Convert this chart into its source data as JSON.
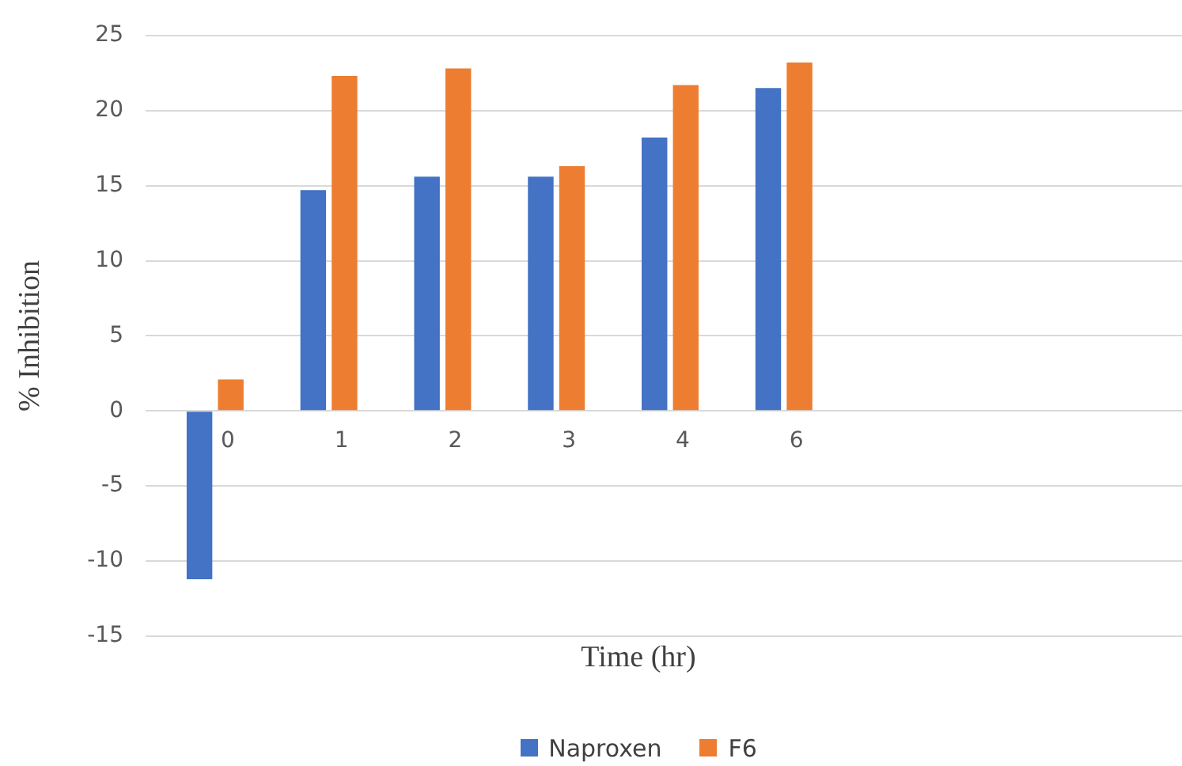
{
  "chart_data": {
    "type": "bar",
    "xlabel": "Time (hr)",
    "ylabel": "% Inhibition",
    "categories": [
      "0",
      "1",
      "2",
      "3",
      "4",
      "6",
      null,
      null,
      null
    ],
    "series": [
      {
        "name": "Naproxen",
        "color": "#4472c4",
        "values": [
          -11.2,
          14.7,
          15.6,
          15.6,
          18.2,
          21.5,
          null,
          null,
          null
        ]
      },
      {
        "name": "F6",
        "color": "#ed7d31",
        "values": [
          2.1,
          22.3,
          22.8,
          16.3,
          21.7,
          23.2,
          null,
          null,
          null
        ]
      }
    ],
    "ylim": [
      -15,
      25
    ],
    "yticks": [
      -15,
      -10,
      -5,
      0,
      5,
      10,
      15,
      20,
      25
    ],
    "grid": "y",
    "legend": "bottom"
  }
}
